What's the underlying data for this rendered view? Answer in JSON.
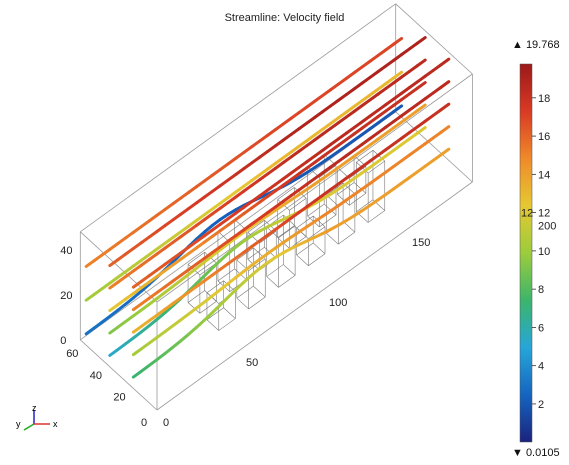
{
  "window": {
    "title": "Streamline: Velocity field"
  },
  "colorbar": {
    "max_label": "▲ 19.768",
    "min_label": "▼ 0.0105",
    "min": 0.0105,
    "max": 19.768,
    "ticks": [
      "2",
      "4",
      "6",
      "8",
      "10",
      "12",
      "14",
      "16",
      "18"
    ],
    "overlapping_labels": [
      "200",
      "12"
    ],
    "colormap": [
      "#1a237e",
      "#1565c0",
      "#26a6d9",
      "#3cb56b",
      "#9ccc3c",
      "#e6c832",
      "#ef8a2a",
      "#d83a24",
      "#9c1919"
    ]
  },
  "axes": {
    "x_ticks": [
      "0",
      "50",
      "100",
      "150"
    ],
    "y_ticks": [
      "20",
      "40",
      "60"
    ],
    "z_ticks": [
      "0",
      "20",
      "40"
    ],
    "y_zero_label": "0",
    "triad": {
      "x": "x",
      "y": "y",
      "z": "z"
    },
    "triad_colors": {
      "x": "#d33",
      "y": "#2a2",
      "z": "#22c"
    }
  },
  "chart_data": {
    "type": "streamline-3d",
    "title": "Streamline: Velocity field",
    "x_range": [
      0,
      190
    ],
    "y_range": [
      0,
      65
    ],
    "z_range": [
      0,
      48
    ],
    "grid": false,
    "color_range": [
      0.0105,
      19.768
    ],
    "streamlines": [
      {
        "y": 20,
        "z": 45,
        "speed_in": 16,
        "speed_out": 18.5
      },
      {
        "y": 20,
        "z": 35,
        "speed_in": 15,
        "speed_out": 18.5
      },
      {
        "y": 20,
        "z": 25,
        "speed_in": 13,
        "speed_out": 18
      },
      {
        "y": 20,
        "z": 15,
        "speed_in": 10,
        "speed_out": 15
      },
      {
        "y": 20,
        "z": 5,
        "speed_in": 7,
        "speed_out": 14
      },
      {
        "y": 40,
        "z": 45,
        "speed_in": 16,
        "speed_out": 19
      },
      {
        "y": 40,
        "z": 35,
        "speed_in": 15,
        "speed_out": 18.5
      },
      {
        "y": 40,
        "z": 25,
        "speed_in": 12,
        "speed_out": 18
      },
      {
        "y": 40,
        "z": 15,
        "speed_in": 9,
        "speed_out": 14
      },
      {
        "y": 40,
        "z": 5,
        "speed_in": 5,
        "speed_out": 12
      },
      {
        "y": 60,
        "z": 35,
        "speed_in": 15,
        "speed_out": 17
      },
      {
        "y": 60,
        "z": 20,
        "speed_in": 10,
        "speed_out": 13
      },
      {
        "y": 60,
        "z": 5,
        "speed_in": 3,
        "speed_out": 2
      }
    ]
  }
}
